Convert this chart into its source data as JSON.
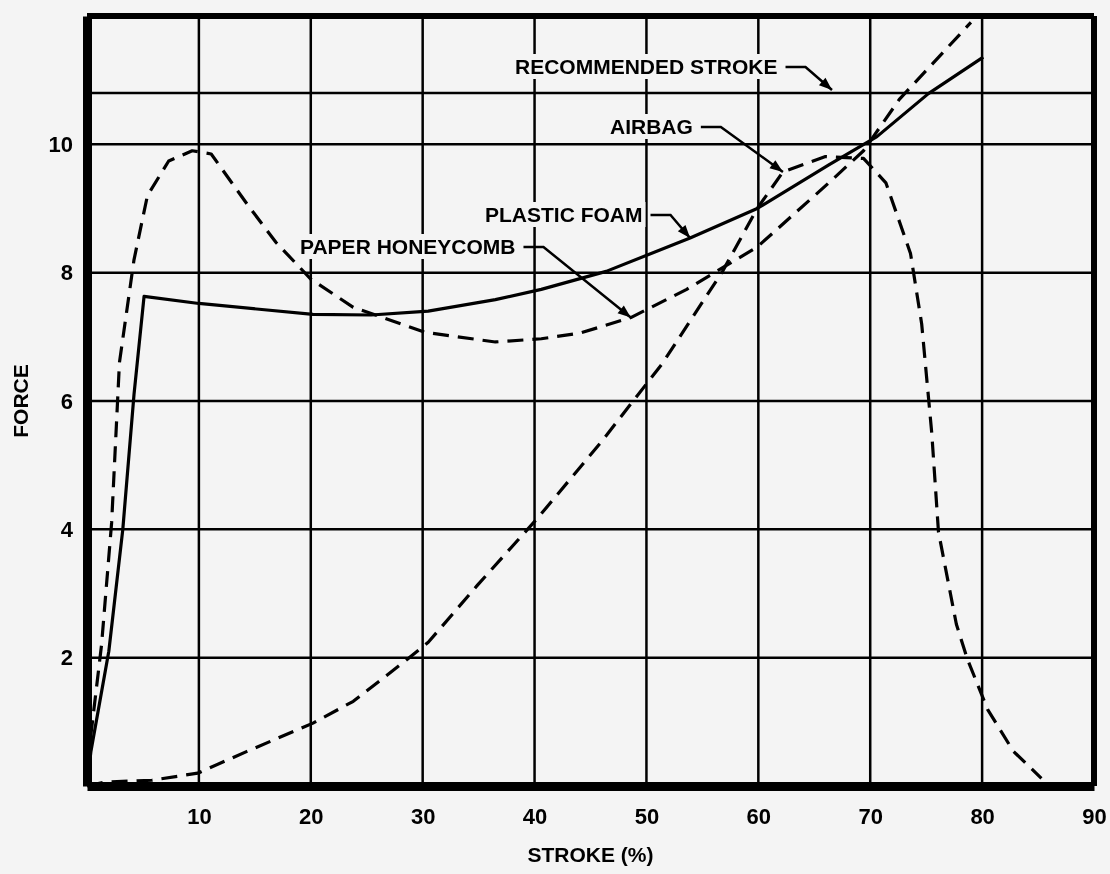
{
  "chart_data": {
    "type": "line",
    "xlabel": "STROKE (%)",
    "ylabel": "FORCE",
    "xlim": [
      0,
      90
    ],
    "ylim": [
      0,
      12
    ],
    "xticks": [
      10,
      20,
      30,
      40,
      50,
      60,
      70,
      80,
      90
    ],
    "yticks": [
      2,
      4,
      6,
      8,
      10,
      {
        "value": 10.8,
        "label": null
      }
    ],
    "grid": true,
    "annotations": [
      "RECOMMENDED STROKE"
    ],
    "series": [
      {
        "name": "PAPER HONEYCOMB",
        "color": "#000000",
        "line_style": "dashed",
        "x": [
          0,
          0.35,
          1.3,
          2.2,
          2.9,
          4.2,
          5.4,
          7.3,
          9.4,
          11.1,
          14.3,
          16.9,
          20.0,
          23.8,
          30.2,
          36.5,
          40.6,
          44.1,
          48.6,
          53.6,
          59.9,
          66.3,
          69.4,
          72.6,
          79.0
        ],
        "values": [
          0,
          0.8,
          2.2,
          4.1,
          6.6,
          8.2,
          9.2,
          9.74,
          9.9,
          9.85,
          9.07,
          8.47,
          7.9,
          7.46,
          7.07,
          6.92,
          6.97,
          7.06,
          7.3,
          7.74,
          8.4,
          9.4,
          9.9,
          10.7,
          11.9
        ]
      },
      {
        "name": "PLASTIC FOAM",
        "color": "#000000",
        "line_style": "solid",
        "x": [
          0,
          0.35,
          1.95,
          3.2,
          4.2,
          5.1,
          10,
          20.2,
          25.4,
          30.5,
          36.5,
          40.6,
          46.4,
          53.9,
          59.9,
          66.3,
          70.6,
          75.2,
          80.1
        ],
        "values": [
          0,
          0.54,
          2.1,
          4.0,
          6.1,
          7.63,
          7.52,
          7.35,
          7.34,
          7.4,
          7.58,
          7.74,
          8.02,
          8.54,
          9.0,
          9.68,
          10.12,
          10.79,
          11.36
        ]
      },
      {
        "name": "AIRBAG",
        "color": "#000000",
        "line_style": "dashed",
        "x": [
          0,
          1.6,
          5.8,
          9.9,
          14.3,
          20.2,
          23.8,
          28.6,
          30.5,
          34.9,
          40.3,
          46.0,
          51.4,
          56.8,
          59.9,
          62.2,
          66.0,
          69.4,
          71.4,
          73.6,
          74.6,
          75.5,
          76.1,
          77.7,
          78.7,
          80.5,
          82.8,
          85.3
        ],
        "values": [
          0,
          0.06,
          0.09,
          0.2,
          0.54,
          0.98,
          1.32,
          1.97,
          2.24,
          3.13,
          4.18,
          5.37,
          6.58,
          8.02,
          9.0,
          9.57,
          9.81,
          9.78,
          9.4,
          8.3,
          7.2,
          5.5,
          3.96,
          2.52,
          1.97,
          1.19,
          0.54,
          0.12
        ]
      }
    ]
  }
}
